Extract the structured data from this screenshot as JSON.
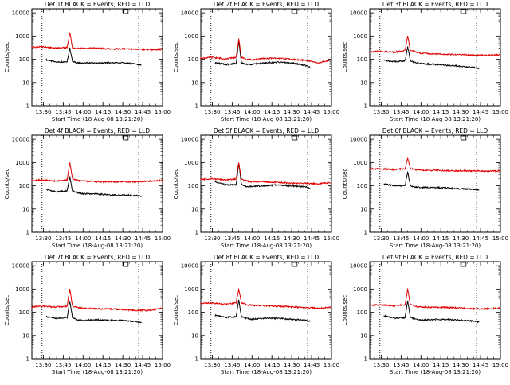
{
  "colors": {
    "events": "#000000",
    "lld": "#e00000",
    "axis": "#000000",
    "background": "#ffffff"
  },
  "chart_data": [
    {
      "type": "line",
      "title": "Det 1f BLACK = Events, RED = LLD",
      "xlabel": "Start Time (18-Aug-08 13:21:20)",
      "ylabel": "Counts/sec",
      "yscale": "log",
      "ylim": [
        1,
        15000
      ],
      "xlim": [
        "13:21:20",
        "15:00:00"
      ],
      "x_ticks": [
        "13:30",
        "13:45",
        "14:00",
        "14:15",
        "14:30",
        "14:45",
        "15:00"
      ],
      "y_ticks": [
        "1",
        "10",
        "100",
        "1000",
        "10000"
      ],
      "markers": [
        "13:29",
        "14:42"
      ],
      "series": [
        {
          "name": "Events",
          "color": "black",
          "x": [
            "13:32",
            "13:40",
            "13:48",
            "13:50",
            "13:52",
            "13:56",
            "14:00",
            "14:10",
            "14:20",
            "14:30",
            "14:40",
            "14:44"
          ],
          "values": [
            95,
            75,
            80,
            300,
            80,
            70,
            70,
            68,
            70,
            70,
            62,
            55
          ]
        },
        {
          "name": "LLD",
          "color": "red",
          "x": [
            "13:21",
            "13:30",
            "13:40",
            "13:48",
            "13:50",
            "13:52",
            "13:56",
            "14:00",
            "14:10",
            "14:20",
            "14:30",
            "14:40",
            "14:50",
            "15:00"
          ],
          "values": [
            330,
            340,
            300,
            320,
            1400,
            320,
            290,
            300,
            300,
            280,
            280,
            270,
            260,
            270
          ]
        }
      ]
    },
    {
      "type": "line",
      "title": "Det 2f BLACK = Events, RED = LLD",
      "xlabel": "Start Time (18-Aug-08 13:21:20)",
      "ylabel": "Counts/sec",
      "yscale": "log",
      "ylim": [
        1,
        15000
      ],
      "xlim": [
        "13:21:20",
        "15:00:00"
      ],
      "x_ticks": [
        "13:30",
        "13:45",
        "14:00",
        "14:15",
        "14:30",
        "14:45",
        "15:00"
      ],
      "y_ticks": [
        "1",
        "10",
        "100",
        "1000",
        "10000"
      ],
      "markers": [
        "13:29",
        "14:42"
      ],
      "series": [
        {
          "name": "Events",
          "color": "black",
          "x": [
            "13:32",
            "13:40",
            "13:48",
            "13:50",
            "13:52",
            "13:56",
            "14:00",
            "14:10",
            "14:20",
            "14:30",
            "14:40",
            "14:44"
          ],
          "values": [
            70,
            60,
            65,
            600,
            70,
            60,
            60,
            70,
            75,
            70,
            55,
            45
          ]
        },
        {
          "name": "LLD",
          "color": "red",
          "x": [
            "13:21",
            "13:30",
            "13:40",
            "13:48",
            "13:50",
            "13:52",
            "13:56",
            "14:00",
            "14:10",
            "14:20",
            "14:30",
            "14:40",
            "14:50",
            "15:00"
          ],
          "values": [
            110,
            120,
            105,
            120,
            750,
            120,
            100,
            95,
            110,
            110,
            100,
            90,
            70,
            95
          ]
        }
      ]
    },
    {
      "type": "line",
      "title": "Det 3f BLACK = Events, RED = LLD",
      "xlabel": "Start Time (18-Aug-08 13:21:20)",
      "ylabel": "Counts/sec",
      "yscale": "log",
      "ylim": [
        1,
        15000
      ],
      "xlim": [
        "13:21:20",
        "15:00:00"
      ],
      "x_ticks": [
        "13:30",
        "13:45",
        "14:00",
        "14:15",
        "14:30",
        "14:45",
        "15:00"
      ],
      "y_ticks": [
        "1",
        "10",
        "100",
        "1000",
        "10000"
      ],
      "markers": [
        "13:29",
        "14:42"
      ],
      "series": [
        {
          "name": "Events",
          "color": "black",
          "x": [
            "13:32",
            "13:40",
            "13:48",
            "13:50",
            "13:52",
            "13:56",
            "14:00",
            "14:10",
            "14:20",
            "14:30",
            "14:40",
            "14:44"
          ],
          "values": [
            90,
            80,
            85,
            350,
            85,
            70,
            65,
            60,
            55,
            50,
            45,
            40
          ]
        },
        {
          "name": "LLD",
          "color": "red",
          "x": [
            "13:21",
            "13:30",
            "13:40",
            "13:48",
            "13:50",
            "13:52",
            "13:56",
            "14:00",
            "14:10",
            "14:20",
            "14:30",
            "14:40",
            "14:50",
            "15:00"
          ],
          "values": [
            210,
            220,
            200,
            240,
            1000,
            240,
            210,
            180,
            170,
            160,
            160,
            150,
            150,
            155
          ]
        }
      ]
    },
    {
      "type": "line",
      "title": "Det 4f BLACK = Events, RED = LLD",
      "xlabel": "Start Time (18-Aug-08 13:21:20)",
      "ylabel": "Counts/sec",
      "yscale": "log",
      "ylim": [
        1,
        15000
      ],
      "xlim": [
        "13:21:20",
        "15:00:00"
      ],
      "x_ticks": [
        "13:30",
        "13:45",
        "14:00",
        "14:15",
        "14:30",
        "14:45",
        "15:00"
      ],
      "y_ticks": [
        "1",
        "10",
        "100",
        "1000",
        "10000"
      ],
      "markers": [
        "13:29",
        "14:42"
      ],
      "series": [
        {
          "name": "Events",
          "color": "black",
          "x": [
            "13:32",
            "13:40",
            "13:48",
            "13:50",
            "13:52",
            "13:56",
            "14:00",
            "14:10",
            "14:20",
            "14:30",
            "14:40",
            "14:44"
          ],
          "values": [
            70,
            55,
            60,
            250,
            60,
            50,
            45,
            45,
            40,
            40,
            38,
            35
          ]
        },
        {
          "name": "LLD",
          "color": "red",
          "x": [
            "13:21",
            "13:30",
            "13:40",
            "13:48",
            "13:50",
            "13:52",
            "13:56",
            "14:00",
            "14:10",
            "14:20",
            "14:30",
            "14:40",
            "14:50",
            "15:00"
          ],
          "values": [
            170,
            180,
            160,
            180,
            1000,
            200,
            170,
            160,
            150,
            150,
            150,
            150,
            160,
            170
          ]
        }
      ]
    },
    {
      "type": "line",
      "title": "Det 5f BLACK = Events, RED = LLD",
      "xlabel": "Start Time (18-Aug-08 13:21:20)",
      "ylabel": "Counts/sec",
      "yscale": "log",
      "ylim": [
        1,
        15000
      ],
      "xlim": [
        "13:21:20",
        "15:00:00"
      ],
      "x_ticks": [
        "13:30",
        "13:45",
        "14:00",
        "14:15",
        "14:30",
        "14:45",
        "15:00"
      ],
      "y_ticks": [
        "1",
        "10",
        "100",
        "1000",
        "10000"
      ],
      "markers": [
        "13:29",
        "14:42"
      ],
      "series": [
        {
          "name": "Events",
          "color": "black",
          "x": [
            "13:32",
            "13:40",
            "13:48",
            "13:50",
            "13:52",
            "13:56",
            "14:00",
            "14:10",
            "14:20",
            "14:30",
            "14:40",
            "14:44"
          ],
          "values": [
            150,
            110,
            110,
            900,
            120,
            90,
            95,
            100,
            110,
            100,
            90,
            75
          ]
        },
        {
          "name": "LLD",
          "color": "red",
          "x": [
            "13:21",
            "13:30",
            "13:40",
            "13:48",
            "13:50",
            "13:52",
            "13:56",
            "14:00",
            "14:10",
            "14:20",
            "14:30",
            "14:40",
            "14:50",
            "15:00"
          ],
          "values": [
            190,
            200,
            180,
            200,
            1000,
            200,
            160,
            150,
            150,
            140,
            130,
            130,
            120,
            140
          ]
        }
      ]
    },
    {
      "type": "line",
      "title": "Det 6f BLACK = Events, RED = LLD",
      "xlabel": "Start Time (18-Aug-08 13:21:20)",
      "ylabel": "Counts/sec",
      "yscale": "log",
      "ylim": [
        1,
        15000
      ],
      "xlim": [
        "13:21:20",
        "15:00:00"
      ],
      "x_ticks": [
        "13:30",
        "13:45",
        "14:00",
        "14:15",
        "14:30",
        "14:45",
        "15:00"
      ],
      "y_ticks": [
        "1",
        "10",
        "100",
        "1000",
        "10000"
      ],
      "markers": [
        "13:29",
        "14:42"
      ],
      "series": [
        {
          "name": "Events",
          "color": "black",
          "x": [
            "13:32",
            "13:40",
            "13:48",
            "13:50",
            "13:52",
            "13:56",
            "14:00",
            "14:10",
            "14:20",
            "14:30",
            "14:40",
            "14:44"
          ],
          "values": [
            120,
            100,
            100,
            400,
            100,
            90,
            85,
            85,
            80,
            75,
            70,
            65
          ]
        },
        {
          "name": "LLD",
          "color": "red",
          "x": [
            "13:21",
            "13:30",
            "13:40",
            "13:48",
            "13:50",
            "13:52",
            "13:56",
            "14:00",
            "14:10",
            "14:20",
            "14:30",
            "14:40",
            "14:50",
            "15:00"
          ],
          "values": [
            530,
            540,
            500,
            540,
            1500,
            540,
            500,
            470,
            460,
            450,
            440,
            440,
            430,
            440
          ]
        }
      ]
    },
    {
      "type": "line",
      "title": "Det 7f BLACK = Events, RED = LLD",
      "xlabel": "Start Time (18-Aug-08 13:21:20)",
      "ylabel": "Counts/sec",
      "yscale": "log",
      "ylim": [
        1,
        15000
      ],
      "xlim": [
        "13:21:20",
        "15:00:00"
      ],
      "x_ticks": [
        "13:30",
        "13:45",
        "14:00",
        "14:15",
        "14:30",
        "14:45",
        "15:00"
      ],
      "y_ticks": [
        "1",
        "10",
        "100",
        "1000",
        "10000"
      ],
      "markers": [
        "13:29",
        "14:42"
      ],
      "series": [
        {
          "name": "Events",
          "color": "black",
          "x": [
            "13:32",
            "13:40",
            "13:48",
            "13:50",
            "13:52",
            "13:56",
            "14:00",
            "14:10",
            "14:20",
            "14:30",
            "14:40",
            "14:44"
          ],
          "values": [
            65,
            55,
            60,
            300,
            60,
            45,
            45,
            48,
            45,
            45,
            40,
            35
          ]
        },
        {
          "name": "LLD",
          "color": "red",
          "x": [
            "13:21",
            "13:30",
            "13:40",
            "13:48",
            "13:50",
            "13:52",
            "13:56",
            "14:00",
            "14:10",
            "14:20",
            "14:30",
            "14:40",
            "14:50",
            "15:00"
          ],
          "values": [
            170,
            180,
            170,
            180,
            1000,
            180,
            160,
            150,
            140,
            140,
            130,
            120,
            120,
            150
          ]
        }
      ]
    },
    {
      "type": "line",
      "title": "Det 8f BLACK = Events, RED = LLD",
      "xlabel": "Start Time (18-Aug-08 13:21:20)",
      "ylabel": "Counts/sec",
      "yscale": "log",
      "ylim": [
        1,
        15000
      ],
      "xlim": [
        "13:21:20",
        "15:00:00"
      ],
      "x_ticks": [
        "13:30",
        "13:45",
        "14:00",
        "14:15",
        "14:30",
        "14:45",
        "15:00"
      ],
      "y_ticks": [
        "1",
        "10",
        "100",
        "1000",
        "10000"
      ],
      "markers": [
        "13:29",
        "14:42"
      ],
      "series": [
        {
          "name": "Events",
          "color": "black",
          "x": [
            "13:32",
            "13:40",
            "13:48",
            "13:50",
            "13:52",
            "13:56",
            "14:00",
            "14:10",
            "14:20",
            "14:30",
            "14:40",
            "14:44"
          ],
          "values": [
            75,
            60,
            65,
            330,
            65,
            55,
            50,
            55,
            55,
            50,
            45,
            40
          ]
        },
        {
          "name": "LLD",
          "color": "red",
          "x": [
            "13:21",
            "13:30",
            "13:40",
            "13:48",
            "13:50",
            "13:52",
            "13:56",
            "14:00",
            "14:10",
            "14:20",
            "14:30",
            "14:40",
            "14:50",
            "15:00"
          ],
          "values": [
            240,
            250,
            220,
            250,
            1000,
            250,
            210,
            200,
            190,
            180,
            170,
            160,
            150,
            160
          ]
        }
      ]
    },
    {
      "type": "line",
      "title": "Det 9f BLACK = Events, RED = LLD",
      "xlabel": "Start Time (18-Aug-08 13:21:20)",
      "ylabel": "Counts/sec",
      "yscale": "log",
      "ylim": [
        1,
        15000
      ],
      "xlim": [
        "13:21:20",
        "15:00:00"
      ],
      "x_ticks": [
        "13:30",
        "13:45",
        "14:00",
        "14:15",
        "14:30",
        "14:45",
        "15:00"
      ],
      "y_ticks": [
        "1",
        "10",
        "100",
        "1000",
        "10000"
      ],
      "markers": [
        "13:29",
        "14:42"
      ],
      "series": [
        {
          "name": "Events",
          "color": "black",
          "x": [
            "13:32",
            "13:40",
            "13:48",
            "13:50",
            "13:52",
            "13:56",
            "14:00",
            "14:10",
            "14:20",
            "14:30",
            "14:40",
            "14:44"
          ],
          "values": [
            70,
            55,
            60,
            300,
            60,
            50,
            45,
            50,
            50,
            45,
            42,
            38
          ]
        },
        {
          "name": "LLD",
          "color": "red",
          "x": [
            "13:21",
            "13:30",
            "13:40",
            "13:48",
            "13:50",
            "13:52",
            "13:56",
            "14:00",
            "14:10",
            "14:20",
            "14:30",
            "14:40",
            "14:50",
            "15:00"
          ],
          "values": [
            200,
            210,
            190,
            210,
            1000,
            210,
            180,
            170,
            160,
            160,
            150,
            140,
            140,
            150
          ]
        }
      ]
    }
  ]
}
